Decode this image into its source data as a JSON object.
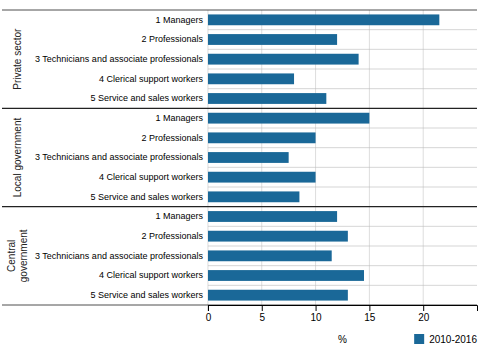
{
  "chart_data": {
    "type": "bar",
    "orientation": "horizontal",
    "categories": [
      "1 Managers",
      "2 Professionals",
      "3 Technicians and associate professionals",
      "4 Clerical support workers",
      "5 Service and sales workers",
      "1 Managers",
      "2 Professionals",
      "3 Technicians and associate professionals",
      "4 Clerical support workers",
      "5 Service and sales workers",
      "1 Managers",
      "2 Professionals",
      "3 Technicians and associate professionals",
      "4 Clerical support workers",
      "5 Service and sales workers"
    ],
    "series": [
      {
        "name": "2010-2016",
        "color": "#1a6898",
        "values": [
          21.5,
          12.0,
          14.0,
          8.0,
          11.0,
          15.0,
          10.0,
          7.5,
          10.0,
          8.5,
          12.0,
          13.0,
          11.5,
          14.5,
          13.0
        ]
      }
    ],
    "group_labels": [
      "Private sector",
      "Local government",
      "Central\ngovernment"
    ],
    "xlabel": "%",
    "xlim": [
      0,
      25
    ],
    "xticks": [
      0,
      5,
      10,
      15,
      20
    ],
    "grid": true,
    "legend": "bottom"
  }
}
